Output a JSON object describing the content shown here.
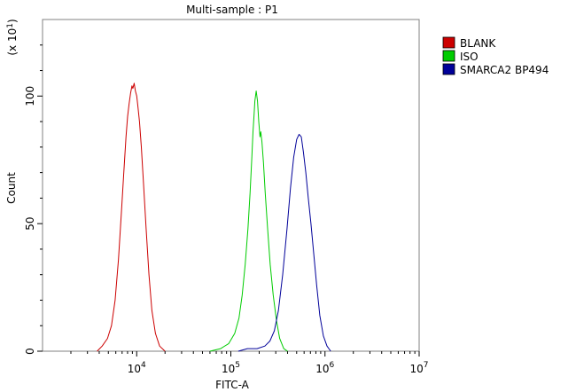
{
  "chart_data": {
    "type": "line",
    "title": "Multi-sample : P1",
    "xlabel": "FITC-A",
    "ylabel": "Count",
    "y_multiplier_label": "(x 10",
    "y_multiplier_exp": "1",
    "y_multiplier_close": ")",
    "x_scale": "log",
    "xlim": [
      1000,
      10000000
    ],
    "ylim": [
      0,
      130
    ],
    "x_ticks": [
      {
        "value": 10000,
        "base": "10",
        "exp": "4"
      },
      {
        "value": 100000,
        "base": "10",
        "exp": "5"
      },
      {
        "value": 1000000,
        "base": "10",
        "exp": "6"
      },
      {
        "value": 10000000,
        "base": "10",
        "exp": "7"
      }
    ],
    "y_ticks": [
      {
        "value": 0,
        "label": "0"
      },
      {
        "value": 50,
        "label": "50"
      },
      {
        "value": 100,
        "label": "100"
      }
    ],
    "grid": false,
    "legend_position": "top-right",
    "series": [
      {
        "name": "BLANK",
        "color": "#cc0000",
        "points": [
          [
            3800,
            0
          ],
          [
            4300,
            2
          ],
          [
            4900,
            5
          ],
          [
            5400,
            10
          ],
          [
            5900,
            20
          ],
          [
            6400,
            36
          ],
          [
            6900,
            55
          ],
          [
            7300,
            70
          ],
          [
            7700,
            84
          ],
          [
            8000,
            92
          ],
          [
            8300,
            97
          ],
          [
            8600,
            101
          ],
          [
            8900,
            104
          ],
          [
            9100,
            103
          ],
          [
            9400,
            105
          ],
          [
            9700,
            102
          ],
          [
            10000,
            100
          ],
          [
            10300,
            96
          ],
          [
            10700,
            90
          ],
          [
            11200,
            80
          ],
          [
            11800,
            66
          ],
          [
            12600,
            48
          ],
          [
            13500,
            30
          ],
          [
            14500,
            16
          ],
          [
            15800,
            7
          ],
          [
            17500,
            2
          ],
          [
            20000,
            0
          ]
        ]
      },
      {
        "name": "ISO",
        "color": "#00cc00",
        "points": [
          [
            60000,
            0
          ],
          [
            78000,
            1
          ],
          [
            95000,
            3
          ],
          [
            110000,
            7
          ],
          [
            122000,
            13
          ],
          [
            132000,
            22
          ],
          [
            142000,
            34
          ],
          [
            152000,
            48
          ],
          [
            160000,
            62
          ],
          [
            167000,
            76
          ],
          [
            172000,
            86
          ],
          [
            176000,
            92
          ],
          [
            180000,
            98
          ],
          [
            186000,
            102
          ],
          [
            192000,
            98
          ],
          [
            198000,
            90
          ],
          [
            204000,
            84
          ],
          [
            208000,
            86
          ],
          [
            214000,
            82
          ],
          [
            222000,
            74
          ],
          [
            232000,
            62
          ],
          [
            246000,
            48
          ],
          [
            262000,
            34
          ],
          [
            282000,
            22
          ],
          [
            305000,
            12
          ],
          [
            330000,
            5
          ],
          [
            365000,
            1
          ],
          [
            400000,
            0
          ]
        ]
      },
      {
        "name": "SMARCA2 BP494",
        "color": "#000099",
        "points": [
          [
            120000,
            0
          ],
          [
            150000,
            1
          ],
          [
            190000,
            1
          ],
          [
            230000,
            2
          ],
          [
            260000,
            4
          ],
          [
            290000,
            8
          ],
          [
            320000,
            16
          ],
          [
            355000,
            30
          ],
          [
            395000,
            48
          ],
          [
            430000,
            64
          ],
          [
            465000,
            76
          ],
          [
            500000,
            83
          ],
          [
            530000,
            85
          ],
          [
            560000,
            84
          ],
          [
            590000,
            78
          ],
          [
            625000,
            70
          ],
          [
            665000,
            60
          ],
          [
            710000,
            50
          ],
          [
            760000,
            38
          ],
          [
            815000,
            26
          ],
          [
            880000,
            14
          ],
          [
            960000,
            6
          ],
          [
            1050000,
            2
          ],
          [
            1150000,
            0
          ]
        ]
      }
    ]
  }
}
